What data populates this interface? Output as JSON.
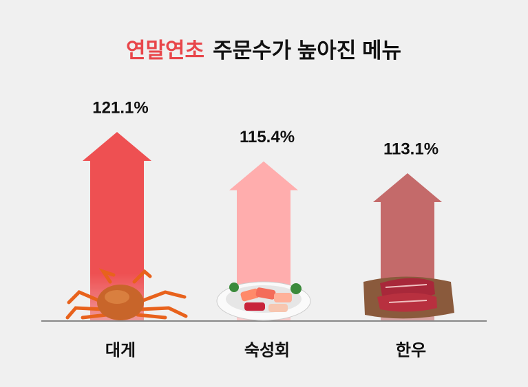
{
  "chart_data": {
    "type": "arrow-bar",
    "title_highlight": "연말연초",
    "title": "주문수가 높아진 메뉴",
    "categories": [
      "대게",
      "숙성회",
      "한우"
    ],
    "values": [
      121.1,
      115.4,
      113.1
    ],
    "value_labels": [
      "121.1%",
      "115.4%",
      "113.1%"
    ],
    "colors": [
      "#ee5052",
      "#ffadad",
      "#c46a6a"
    ]
  }
}
